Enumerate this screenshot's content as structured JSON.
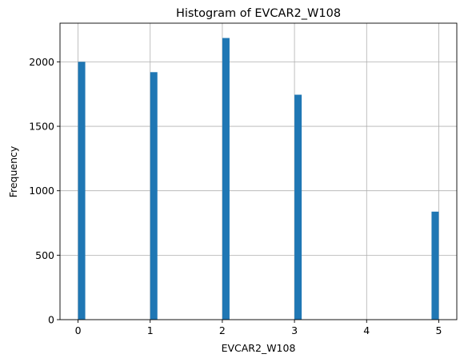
{
  "chart_data": {
    "type": "bar",
    "title": "Histogram of EVCAR2_W108",
    "xlabel": "EVCAR2_W108",
    "ylabel": "Frequency",
    "xlim": [
      -0.25,
      5.25
    ],
    "ylim": [
      0,
      2300
    ],
    "xticks": [
      0,
      1,
      2,
      3,
      4,
      5
    ],
    "yticks": [
      0,
      500,
      1000,
      1500,
      2000
    ],
    "grid": true,
    "bar_color": "#1f77b4",
    "bins": [
      {
        "x0": 0.0,
        "x1": 0.1,
        "value": 2000
      },
      {
        "x0": 1.0,
        "x1": 1.1,
        "value": 1920
      },
      {
        "x0": 2.0,
        "x1": 2.1,
        "value": 2185
      },
      {
        "x0": 3.0,
        "x1": 3.1,
        "value": 1745
      },
      {
        "x0": 4.9,
        "x1": 5.0,
        "value": 838
      }
    ]
  }
}
